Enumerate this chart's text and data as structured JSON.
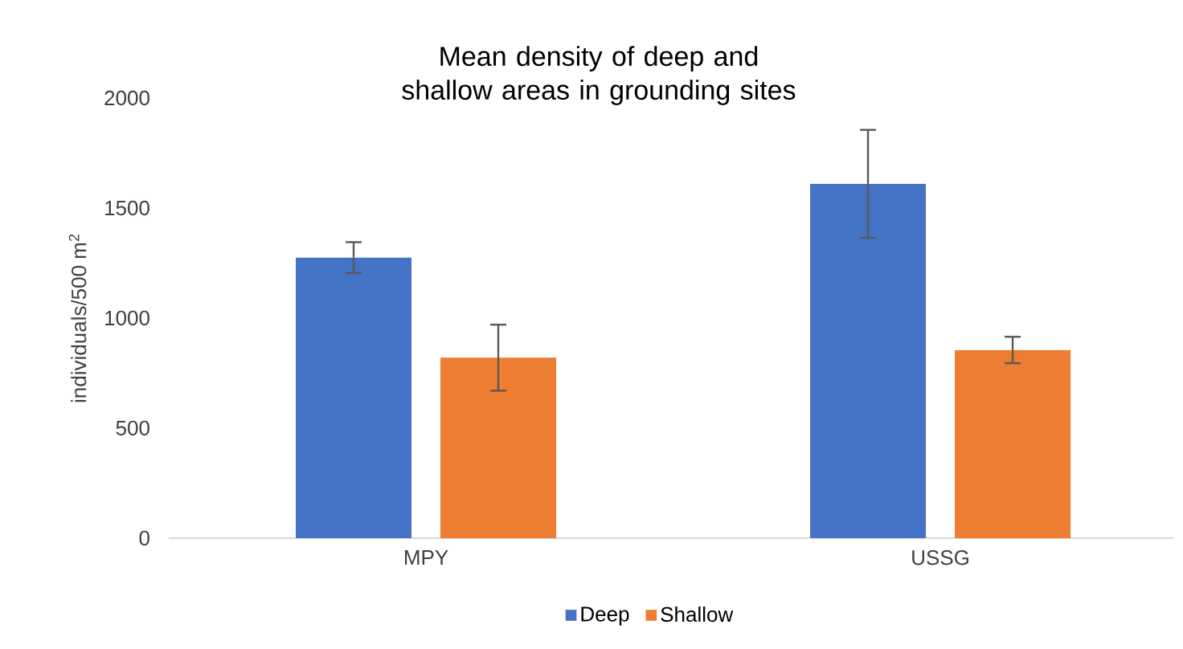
{
  "chart_data": {
    "type": "bar",
    "title": "Mean density of deep and shallow areas  in grounding sites",
    "ylabel": "individuals/500 m$^{2}$",
    "categories": [
      "MPY",
      "USSG"
    ],
    "series": [
      {
        "name": "Deep",
        "color": "#4472c4",
        "values": [
          1275,
          1610
        ],
        "errors": [
          70,
          245
        ]
      },
      {
        "name": "Shallow",
        "color": "#ed7d31",
        "values": [
          820,
          855
        ],
        "errors": [
          150,
          60
        ]
      }
    ],
    "ylim": [
      0,
      2000
    ],
    "yticks": [
      0,
      500,
      1000,
      1500,
      2000
    ],
    "grid": false,
    "legend": "bottom"
  }
}
